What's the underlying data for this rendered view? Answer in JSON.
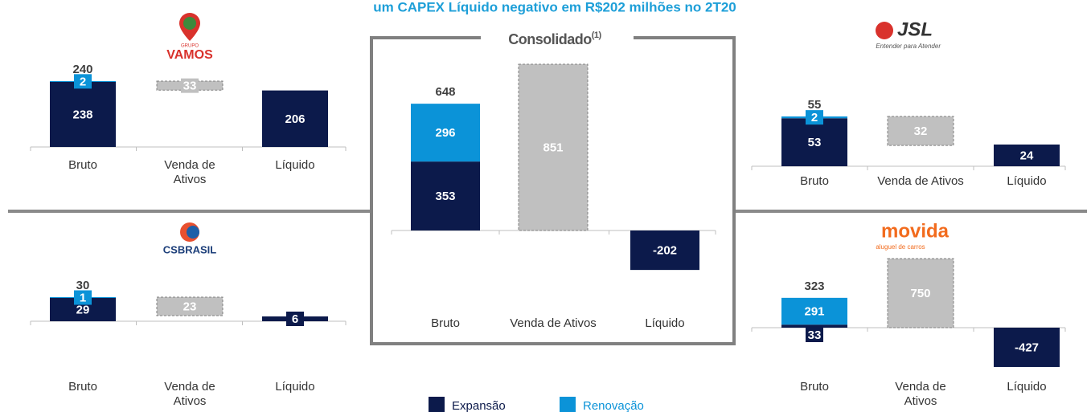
{
  "title": "um CAPEX Líquido negativo em R$202 milhões no 2T20",
  "chart_data": [
    {
      "type": "waterfall",
      "logo_text": [
        "GRUPO",
        "VAMOS"
      ],
      "categories": [
        "Bruto",
        "Venda de Ativos",
        "Líquido"
      ],
      "values": [
        240,
        33,
        206
      ],
      "series": [
        {
          "name": "Expansão",
          "color": "#0c1a4b",
          "values": [
            238,
            null,
            null
          ]
        },
        {
          "name": "Renovação",
          "color": "#0b93d8",
          "values": [
            2,
            null,
            null
          ]
        }
      ],
      "sale_color": "#c0c0c0",
      "net_color": "#0c1a4b"
    },
    {
      "type": "waterfall",
      "logo_text": [
        "CSBRASIL"
      ],
      "categories": [
        "Bruto",
        "Venda de Ativos",
        "Líquido"
      ],
      "values": [
        30,
        23,
        6
      ],
      "series": [
        {
          "name": "Expansão",
          "color": "#0c1a4b",
          "values": [
            29,
            null,
            null
          ]
        },
        {
          "name": "Renovação",
          "color": "#0b93d8",
          "values": [
            1,
            null,
            null
          ]
        }
      ],
      "sale_color": "#c0c0c0",
      "net_color": "#0c1a4b"
    },
    {
      "type": "waterfall",
      "title": "Consolidado",
      "title_note": "(1)",
      "categories": [
        "Bruto",
        "Venda de Ativos",
        "Líquido"
      ],
      "values": [
        648,
        851,
        -202
      ],
      "series": [
        {
          "name": "Expansão",
          "color": "#0c1a4b",
          "values": [
            353,
            null,
            null
          ]
        },
        {
          "name": "Renovação",
          "color": "#0b93d8",
          "values": [
            296,
            null,
            null
          ]
        }
      ],
      "sale_color": "#c0c0c0",
      "net_color": "#0c1a4b"
    },
    {
      "type": "waterfall",
      "logo_text": [
        "JSL",
        "Entender para Atender"
      ],
      "categories": [
        "Bruto",
        "Venda de Ativos",
        "Líquido"
      ],
      "values": [
        55,
        32,
        24
      ],
      "series": [
        {
          "name": "Expansão",
          "color": "#0c1a4b",
          "values": [
            53,
            null,
            null
          ]
        },
        {
          "name": "Renovação",
          "color": "#0b93d8",
          "values": [
            2,
            null,
            null
          ]
        }
      ],
      "sale_color": "#c0c0c0",
      "net_color": "#0c1a4b"
    },
    {
      "type": "waterfall",
      "logo_text": [
        "movida",
        "aluguel de carros"
      ],
      "categories": [
        "Bruto",
        "Venda de Ativos",
        "Líquido"
      ],
      "values": [
        323,
        750,
        -427
      ],
      "series": [
        {
          "name": "Expansão",
          "color": "#0c1a4b",
          "values": [
            33,
            null,
            null
          ]
        },
        {
          "name": "Renovação",
          "color": "#0b93d8",
          "values": [
            291,
            null,
            null
          ]
        }
      ],
      "sale_color": "#c0c0c0",
      "net_color": "#0c1a4b"
    }
  ]
}
